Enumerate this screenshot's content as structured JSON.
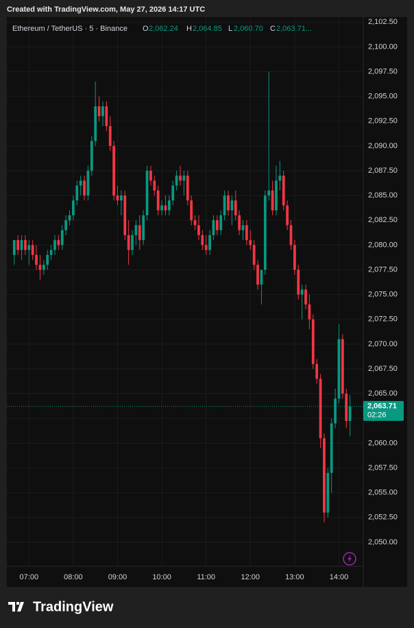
{
  "header": {
    "created": "Created with TradingView.com, May 27, 2026 14:17 UTC"
  },
  "legend": {
    "symbol": "Ethereum / TetherUS · 5 · Binance",
    "o_label": "O",
    "o": "2,062.24",
    "h_label": "H",
    "h": "2,064.85",
    "l_label": "L",
    "l": "2,060.70",
    "c_label": "C",
    "c": "2,063.71..."
  },
  "footer": {
    "logo": "TradingView"
  },
  "chart_data": {
    "type": "candlestick",
    "up_color": "#089981",
    "down_color": "#f23645",
    "x": [
      "06:40",
      "06:45",
      "06:50",
      "06:55",
      "07:00",
      "07:05",
      "07:10",
      "07:15",
      "07:20",
      "07:25",
      "07:30",
      "07:35",
      "07:40",
      "07:45",
      "07:50",
      "07:55",
      "08:00",
      "08:05",
      "08:10",
      "08:15",
      "08:20",
      "08:25",
      "08:30",
      "08:35",
      "08:40",
      "08:45",
      "08:50",
      "08:55",
      "09:00",
      "09:05",
      "09:10",
      "09:15",
      "09:20",
      "09:25",
      "09:30",
      "09:35",
      "09:40",
      "09:45",
      "09:50",
      "09:55",
      "10:00",
      "10:05",
      "10:10",
      "10:15",
      "10:20",
      "10:25",
      "10:30",
      "10:35",
      "10:40",
      "10:45",
      "10:50",
      "10:55",
      "11:00",
      "11:05",
      "11:10",
      "11:15",
      "11:20",
      "11:25",
      "11:30",
      "11:35",
      "11:40",
      "11:45",
      "11:50",
      "11:55",
      "12:00",
      "12:05",
      "12:10",
      "12:15",
      "12:20",
      "12:25",
      "12:30",
      "12:35",
      "12:40",
      "12:45",
      "12:50",
      "12:55",
      "13:00",
      "13:05",
      "13:10",
      "13:15",
      "13:20",
      "13:25",
      "13:30",
      "13:35",
      "13:40",
      "13:45",
      "13:50",
      "13:55",
      "14:00",
      "14:05",
      "14:10",
      "14:15"
    ],
    "open": [
      2079,
      2080.5,
      2079.5,
      2080.5,
      2079.5,
      2080,
      2079,
      2078,
      2077.5,
      2078,
      2079,
      2079.5,
      2080.5,
      2080,
      2081.5,
      2082.5,
      2083,
      2084.5,
      2086,
      2086.5,
      2085,
      2087.5,
      2090.5,
      2094,
      2093,
      2094,
      2092,
      2090,
      2085,
      2084.5,
      2085,
      2081,
      2079.5,
      2081,
      2082,
      2080.5,
      2083,
      2087.5,
      2086.5,
      2085.5,
      2083.5,
      2084,
      2083.5,
      2084.5,
      2086,
      2087,
      2086.5,
      2087,
      2084.5,
      2082.5,
      2082,
      2081,
      2080,
      2079.5,
      2081,
      2082.5,
      2081.5,
      2083,
      2085,
      2083.5,
      2084.5,
      2083,
      2081.5,
      2082,
      2080.5,
      2080,
      2078,
      2076,
      2077.5,
      2085,
      2085.5,
      2083.5,
      2086.5,
      2087,
      2084,
      2082,
      2080,
      2077.5,
      2075,
      2075.5,
      2074,
      2072.5,
      2068,
      2066.5,
      2060.5,
      2053,
      2057,
      2062,
      2064.5,
      2070.5,
      2065,
      2062.24
    ],
    "high": [
      2080.5,
      2081,
      2081,
      2081,
      2080.5,
      2080.5,
      2080,
      2079,
      2078.5,
      2079.5,
      2080,
      2081,
      2081,
      2082,
      2083,
      2083.5,
      2085,
      2086.5,
      2087,
      2087,
      2088,
      2091,
      2096.5,
      2095,
      2094.5,
      2094.5,
      2093,
      2090.5,
      2086,
      2085.5,
      2085.5,
      2082.5,
      2081.5,
      2082.5,
      2083,
      2083.5,
      2088,
      2088,
      2087,
      2086,
      2084.5,
      2085,
      2085,
      2086.5,
      2087.5,
      2088,
      2087.5,
      2087.5,
      2085,
      2083,
      2083,
      2081.5,
      2081,
      2081.5,
      2083,
      2083,
      2083.5,
      2085.5,
      2085.5,
      2085,
      2085.5,
      2083.5,
      2082.5,
      2082.5,
      2081.5,
      2080.5,
      2078.5,
      2077.5,
      2085.5,
      2097.5,
      2086.5,
      2088,
      2088.5,
      2087.5,
      2084.5,
      2082.5,
      2080.5,
      2078,
      2076,
      2076,
      2075,
      2073,
      2068.5,
      2067,
      2061,
      2057.5,
      2062.5,
      2065.5,
      2072,
      2071,
      2065.5,
      2064.85
    ],
    "low": [
      2078,
      2079,
      2078.5,
      2079,
      2078,
      2078.5,
      2077.5,
      2076.5,
      2077,
      2077.5,
      2078.5,
      2079,
      2079.5,
      2079.5,
      2081,
      2082,
      2082.5,
      2084,
      2085,
      2084.5,
      2084.5,
      2087,
      2090,
      2092.5,
      2092,
      2091.5,
      2089.5,
      2084.5,
      2084,
      2083,
      2080.5,
      2078,
      2079,
      2080,
      2079.5,
      2080,
      2082.5,
      2086,
      2085,
      2083,
      2083,
      2083,
      2083,
      2084,
      2085.5,
      2086,
      2085,
      2084,
      2082,
      2081.5,
      2080.5,
      2079.5,
      2079,
      2079,
      2080.5,
      2081,
      2081,
      2082.5,
      2083,
      2082,
      2082.5,
      2081,
      2080.5,
      2080,
      2079.5,
      2077.5,
      2075.5,
      2074,
      2077,
      2084.5,
      2083,
      2083,
      2085.5,
      2083.5,
      2081.5,
      2079.5,
      2077,
      2074.5,
      2072.5,
      2073.5,
      2071.5,
      2067.5,
      2066,
      2059.5,
      2052,
      2052.5,
      2055,
      2061.5,
      2064,
      2064.5,
      2061.5,
      2060.7
    ],
    "close": [
      2080.5,
      2079.5,
      2080.5,
      2079.5,
      2080,
      2079,
      2078,
      2077.5,
      2078,
      2079,
      2079.5,
      2080.5,
      2080,
      2081.5,
      2082.5,
      2083,
      2084.5,
      2086,
      2086.5,
      2085,
      2087.5,
      2090.5,
      2094,
      2093,
      2094,
      2092,
      2090,
      2085,
      2084.5,
      2085,
      2081,
      2079.5,
      2081,
      2082,
      2080.5,
      2083,
      2087.5,
      2086.5,
      2085.5,
      2083.5,
      2084,
      2083.5,
      2084.5,
      2086,
      2087,
      2086.5,
      2087,
      2084.5,
      2082.5,
      2082,
      2081,
      2080,
      2079.5,
      2081,
      2082.5,
      2081.5,
      2083,
      2085,
      2083.5,
      2084.5,
      2083,
      2081.5,
      2082,
      2080.5,
      2080,
      2078,
      2076,
      2077.5,
      2085,
      2085.5,
      2083.5,
      2086.5,
      2087,
      2084,
      2082,
      2080,
      2077.5,
      2075,
      2075.5,
      2074,
      2072.5,
      2068,
      2066.5,
      2060.5,
      2053,
      2057,
      2062,
      2064.5,
      2070.5,
      2065,
      2062.24,
      2063.71
    ],
    "last_price": {
      "value": 2063.71,
      "label": "2,063.71",
      "countdown": "02:26"
    },
    "xlim": [
      "06:30",
      "14:33"
    ],
    "xticks": [
      "07:00",
      "08:00",
      "09:00",
      "10:00",
      "11:00",
      "12:00",
      "13:00",
      "14:00"
    ],
    "ylim": [
      2045.5,
      2103
    ],
    "yticks": [
      {
        "value": 2050,
        "label": "2,050.00"
      },
      {
        "value": 2052.5,
        "label": "2,052.50"
      },
      {
        "value": 2055,
        "label": "2,055.00"
      },
      {
        "value": 2057.5,
        "label": "2,057.50"
      },
      {
        "value": 2060,
        "label": "2,060.00"
      },
      {
        "value": 2062.5,
        "label": "2,062.50"
      },
      {
        "value": 2065,
        "label": "2,065.00"
      },
      {
        "value": 2067.5,
        "label": "2,067.50"
      },
      {
        "value": 2070,
        "label": "2,070.00"
      },
      {
        "value": 2072.5,
        "label": "2,072.50"
      },
      {
        "value": 2075,
        "label": "2,075.00"
      },
      {
        "value": 2077.5,
        "label": "2,077.50"
      },
      {
        "value": 2080,
        "label": "2,080.00"
      },
      {
        "value": 2082.5,
        "label": "2,082.50"
      },
      {
        "value": 2085,
        "label": "2,085.00"
      },
      {
        "value": 2087.5,
        "label": "2,087.50"
      },
      {
        "value": 2090,
        "label": "2,090.00"
      },
      {
        "value": 2092.5,
        "label": "2,092.50"
      },
      {
        "value": 2095,
        "label": "2,095.00"
      },
      {
        "value": 2097.5,
        "label": "2,097.50"
      },
      {
        "value": 2100,
        "label": "2,100.00"
      },
      {
        "value": 2102.5,
        "label": "2,102.50"
      }
    ],
    "grid": true
  }
}
